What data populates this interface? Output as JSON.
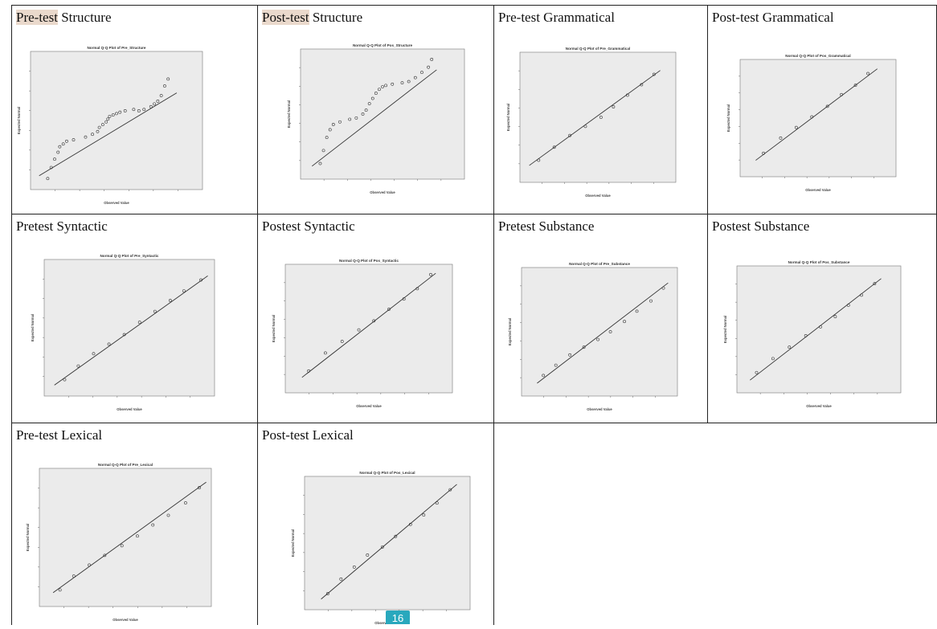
{
  "page_number": "16",
  "colors": {
    "highlight": "#ead9cc",
    "plot_bg": "#ebebeb",
    "badge": "#29a8bd",
    "line": "#222222"
  },
  "panels": [
    {
      "title_hl": "Pre-test",
      "title_rest": " Structure",
      "plot_title": "Normal Q-Q Plot of Pre_Structure",
      "xlabel": "Observed Value",
      "ylabel": "Expected Normal"
    },
    {
      "title_hl": "Post-test",
      "title_rest": " Structure",
      "plot_title": "Normal Q-Q Plot of Pos_Structure",
      "xlabel": "Observed Value",
      "ylabel": "Expected Normal"
    },
    {
      "title_hl": "",
      "title_rest": "Pre-test Grammatical",
      "plot_title": "Normal Q-Q Plot of Pre_Grammatical",
      "xlabel": "Observed Value",
      "ylabel": "Expected Normal"
    },
    {
      "title_hl": "",
      "title_rest": "Post-test Grammatical",
      "plot_title": "Normal Q-Q Plot of Pos_Grammatical",
      "xlabel": "Observed Value",
      "ylabel": "Expected Normal"
    },
    {
      "title_hl": "",
      "title_rest": "Pretest Syntactic",
      "plot_title": "Normal Q-Q Plot of Pre_Syntactic",
      "xlabel": "Observed Value",
      "ylabel": "Expected Normal"
    },
    {
      "title_hl": "",
      "title_rest": "Postest Syntactic",
      "plot_title": "Normal Q-Q Plot of Pos_Syntactic",
      "xlabel": "Observed Value",
      "ylabel": "Expected Normal"
    },
    {
      "title_hl": "",
      "title_rest": "Pretest Substance",
      "plot_title": "Normal Q-Q Plot of Pre_Substance",
      "xlabel": "Observed Value",
      "ylabel": "Expected Normal"
    },
    {
      "title_hl": "",
      "title_rest": "Postest Substance",
      "plot_title": "Normal Q-Q Plot of Pos_Substance",
      "xlabel": "Observed Value",
      "ylabel": "Expected Normal"
    },
    {
      "title_hl": "",
      "title_rest": "Pre-test Lexical",
      "plot_title": "Normal Q-Q Plot of Pre_Lexical",
      "xlabel": "Observed Value",
      "ylabel": "Expected Normal"
    },
    {
      "title_hl": "",
      "title_rest": "Post-test Lexical",
      "plot_title": "Normal Q-Q Plot of Pos_Lexical",
      "xlabel": "Observed Value",
      "ylabel": "Expected Normal"
    }
  ],
  "chart_data": [
    {
      "type": "scatter",
      "title": "Normal Q-Q Plot of Pre_Structure",
      "xlabel": "Observed Value",
      "ylabel": "Expected Normal",
      "points": [
        [
          0.1,
          0.08
        ],
        [
          0.12,
          0.16
        ],
        [
          0.14,
          0.22
        ],
        [
          0.16,
          0.27
        ],
        [
          0.17,
          0.31
        ],
        [
          0.19,
          0.33
        ],
        [
          0.21,
          0.35
        ],
        [
          0.25,
          0.36
        ],
        [
          0.32,
          0.38
        ],
        [
          0.36,
          0.4
        ],
        [
          0.39,
          0.42
        ],
        [
          0.4,
          0.45
        ],
        [
          0.42,
          0.47
        ],
        [
          0.44,
          0.49
        ],
        [
          0.45,
          0.51
        ],
        [
          0.46,
          0.53
        ],
        [
          0.48,
          0.54
        ],
        [
          0.5,
          0.55
        ],
        [
          0.52,
          0.56
        ],
        [
          0.55,
          0.57
        ],
        [
          0.6,
          0.58
        ],
        [
          0.63,
          0.57
        ],
        [
          0.66,
          0.58
        ],
        [
          0.7,
          0.6
        ],
        [
          0.72,
          0.62
        ],
        [
          0.74,
          0.64
        ],
        [
          0.76,
          0.68
        ],
        [
          0.78,
          0.75
        ],
        [
          0.8,
          0.8
        ]
      ],
      "line": [
        [
          0.05,
          0.1
        ],
        [
          0.85,
          0.7
        ]
      ]
    },
    {
      "type": "scatter",
      "title": "Normal Q-Q Plot of Pos_Structure",
      "xlabel": "Observed Value",
      "ylabel": "Expected Normal",
      "points": [
        [
          0.12,
          0.12
        ],
        [
          0.14,
          0.22
        ],
        [
          0.16,
          0.32
        ],
        [
          0.18,
          0.38
        ],
        [
          0.2,
          0.42
        ],
        [
          0.24,
          0.44
        ],
        [
          0.3,
          0.46
        ],
        [
          0.34,
          0.47
        ],
        [
          0.38,
          0.5
        ],
        [
          0.4,
          0.53
        ],
        [
          0.42,
          0.58
        ],
        [
          0.44,
          0.62
        ],
        [
          0.46,
          0.66
        ],
        [
          0.48,
          0.69
        ],
        [
          0.5,
          0.71
        ],
        [
          0.52,
          0.72
        ],
        [
          0.56,
          0.73
        ],
        [
          0.62,
          0.74
        ],
        [
          0.66,
          0.75
        ],
        [
          0.7,
          0.78
        ],
        [
          0.74,
          0.82
        ],
        [
          0.78,
          0.86
        ],
        [
          0.8,
          0.92
        ]
      ],
      "line": [
        [
          0.07,
          0.1
        ],
        [
          0.83,
          0.84
        ]
      ]
    },
    {
      "type": "scatter",
      "title": "Normal Q-Q Plot of Pre_Grammatical",
      "xlabel": "Observed Value",
      "ylabel": "Expected Normal",
      "points": [
        [
          0.12,
          0.17
        ],
        [
          0.22,
          0.27
        ],
        [
          0.32,
          0.36
        ],
        [
          0.42,
          0.43
        ],
        [
          0.52,
          0.5
        ],
        [
          0.6,
          0.58
        ],
        [
          0.69,
          0.67
        ],
        [
          0.78,
          0.75
        ],
        [
          0.86,
          0.83
        ]
      ],
      "line": [
        [
          0.06,
          0.13
        ],
        [
          0.9,
          0.86
        ]
      ]
    },
    {
      "type": "scatter",
      "title": "Normal Q-Q Plot of Pos_Grammatical",
      "xlabel": "Observed Value",
      "ylabel": "Expected Normal",
      "points": [
        [
          0.15,
          0.2
        ],
        [
          0.26,
          0.33
        ],
        [
          0.36,
          0.42
        ],
        [
          0.46,
          0.51
        ],
        [
          0.56,
          0.6
        ],
        [
          0.65,
          0.7
        ],
        [
          0.74,
          0.78
        ],
        [
          0.82,
          0.88
        ]
      ],
      "line": [
        [
          0.1,
          0.14
        ],
        [
          0.88,
          0.92
        ]
      ]
    },
    {
      "type": "scatter",
      "title": "Normal Q-Q Plot of Pre_Syntactic",
      "xlabel": "Observed Value",
      "ylabel": "Expected Normal",
      "points": [
        [
          0.12,
          0.12
        ],
        [
          0.2,
          0.22
        ],
        [
          0.29,
          0.31
        ],
        [
          0.38,
          0.38
        ],
        [
          0.47,
          0.45
        ],
        [
          0.56,
          0.54
        ],
        [
          0.65,
          0.62
        ],
        [
          0.74,
          0.7
        ],
        [
          0.82,
          0.77
        ],
        [
          0.92,
          0.85
        ]
      ],
      "line": [
        [
          0.06,
          0.08
        ],
        [
          0.96,
          0.88
        ]
      ]
    },
    {
      "type": "scatter",
      "title": "Normal Q-Q Plot of Pos_Syntactic",
      "xlabel": "Observed Value",
      "ylabel": "Expected Normal",
      "points": [
        [
          0.14,
          0.17
        ],
        [
          0.24,
          0.31
        ],
        [
          0.34,
          0.4
        ],
        [
          0.44,
          0.49
        ],
        [
          0.53,
          0.56
        ],
        [
          0.62,
          0.65
        ],
        [
          0.71,
          0.73
        ],
        [
          0.79,
          0.81
        ],
        [
          0.87,
          0.92
        ]
      ],
      "line": [
        [
          0.1,
          0.12
        ],
        [
          0.9,
          0.93
        ]
      ]
    },
    {
      "type": "scatter",
      "title": "Normal Q-Q Plot of Pre_Substance",
      "xlabel": "Observed Value",
      "ylabel": "Expected Normal",
      "points": [
        [
          0.14,
          0.16
        ],
        [
          0.22,
          0.24
        ],
        [
          0.31,
          0.32
        ],
        [
          0.4,
          0.38
        ],
        [
          0.49,
          0.44
        ],
        [
          0.57,
          0.5
        ],
        [
          0.66,
          0.58
        ],
        [
          0.74,
          0.66
        ],
        [
          0.83,
          0.74
        ],
        [
          0.91,
          0.84
        ]
      ],
      "line": [
        [
          0.1,
          0.1
        ],
        [
          0.94,
          0.88
        ]
      ]
    },
    {
      "type": "scatter",
      "title": "Normal Q-Q Plot of Pos_Substance",
      "xlabel": "Observed Value",
      "ylabel": "Expected Normal",
      "points": [
        [
          0.12,
          0.16
        ],
        [
          0.22,
          0.27
        ],
        [
          0.32,
          0.36
        ],
        [
          0.42,
          0.45
        ],
        [
          0.51,
          0.52
        ],
        [
          0.6,
          0.6
        ],
        [
          0.68,
          0.69
        ],
        [
          0.76,
          0.77
        ],
        [
          0.84,
          0.86
        ]
      ],
      "line": [
        [
          0.08,
          0.1
        ],
        [
          0.88,
          0.9
        ]
      ]
    },
    {
      "type": "scatter",
      "title": "Normal Q-Q Plot of Pre_Lexical",
      "xlabel": "Observed Value",
      "ylabel": "Expected Normal",
      "points": [
        [
          0.12,
          0.12
        ],
        [
          0.2,
          0.22
        ],
        [
          0.29,
          0.3
        ],
        [
          0.38,
          0.37
        ],
        [
          0.48,
          0.44
        ],
        [
          0.57,
          0.51
        ],
        [
          0.66,
          0.59
        ],
        [
          0.75,
          0.66
        ],
        [
          0.85,
          0.75
        ],
        [
          0.93,
          0.86
        ]
      ],
      "line": [
        [
          0.08,
          0.1
        ],
        [
          0.97,
          0.9
        ]
      ]
    },
    {
      "type": "scatter",
      "title": "Normal Q-Q Plot of Pos_Lexical",
      "xlabel": "Observed Value",
      "ylabel": "Expected Normal",
      "points": [
        [
          0.14,
          0.12
        ],
        [
          0.22,
          0.23
        ],
        [
          0.3,
          0.32
        ],
        [
          0.38,
          0.41
        ],
        [
          0.47,
          0.47
        ],
        [
          0.55,
          0.55
        ],
        [
          0.64,
          0.64
        ],
        [
          0.72,
          0.71
        ],
        [
          0.8,
          0.8
        ],
        [
          0.88,
          0.9
        ]
      ],
      "line": [
        [
          0.1,
          0.08
        ],
        [
          0.92,
          0.94
        ]
      ]
    }
  ]
}
